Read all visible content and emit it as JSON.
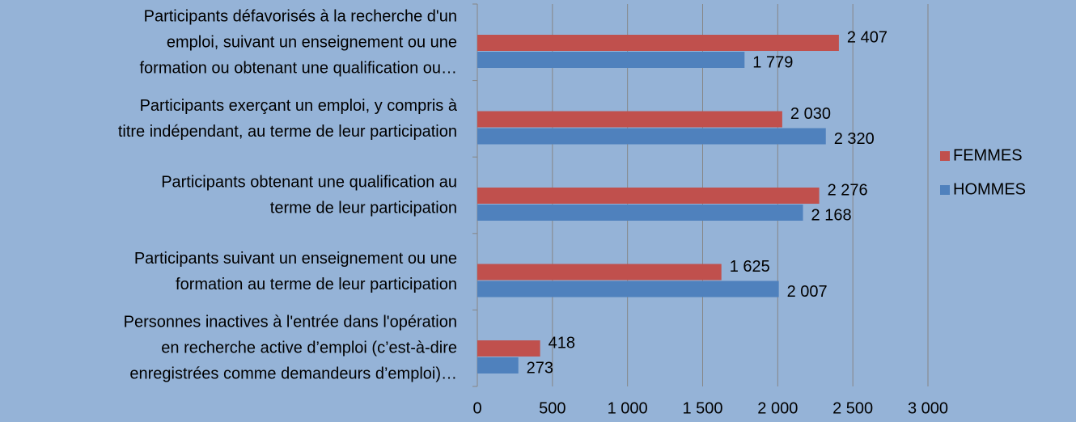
{
  "chart_data": {
    "type": "bar",
    "orientation": "horizontal",
    "categories": [
      [
        "Participants défavorisés à la recherche d'un",
        "emploi, suivant un enseignement ou une",
        "formation ou obtenant une qualification ou…"
      ],
      [
        "Participants exerçant un emploi, y compris à",
        "titre indépendant, au terme de leur participation"
      ],
      [
        "Participants obtenant une qualification au",
        "terme de leur participation"
      ],
      [
        "Participants suivant un enseignement ou une",
        "formation au terme de leur participation"
      ],
      [
        "Personnes inactives à l'entrée dans l'opération",
        "en recherche active d’emploi (c’est-à-dire",
        "enregistrées comme demandeurs d’emploi)…"
      ]
    ],
    "series": [
      {
        "name": "FEMMES",
        "color": "#c0504d",
        "values": [
          2407,
          2030,
          2276,
          1625,
          418
        ],
        "value_labels": [
          "2 407",
          "2 030",
          "2 276",
          "1 625",
          "418"
        ]
      },
      {
        "name": "HOMMES",
        "color": "#4f81bd",
        "values": [
          1779,
          2320,
          2168,
          2007,
          273
        ],
        "value_labels": [
          "1 779",
          "2 320",
          "2 168",
          "2 007",
          "273"
        ]
      }
    ],
    "xlim": [
      0,
      3000
    ],
    "xticks": [
      0,
      500,
      {
        "value": 1000,
        "label": "1 000"
      },
      {
        "value": 1500,
        "label": "1 500"
      },
      {
        "value": 2000,
        "label": "2 000"
      },
      {
        "value": 2500,
        "label": "2 500"
      },
      {
        "value": 3000,
        "label": "3 000"
      }
    ],
    "grid": true,
    "legend": "right"
  }
}
